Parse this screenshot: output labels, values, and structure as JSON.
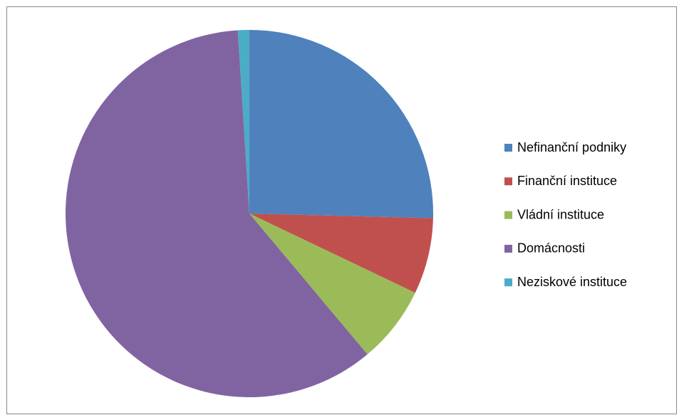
{
  "chart_data": {
    "type": "pie",
    "categories": [
      "Nefinanční podniky",
      "Finanční instituce",
      "Vládní instituce",
      "Domácnosti",
      "Neziskové instituce"
    ],
    "values": [
      25.4,
      6.7,
      6.8,
      60.1,
      1.0
    ],
    "colors": [
      "#4f81bd",
      "#c0504d",
      "#9bbb59",
      "#8064a2",
      "#4bacc6"
    ],
    "legend": "right"
  }
}
